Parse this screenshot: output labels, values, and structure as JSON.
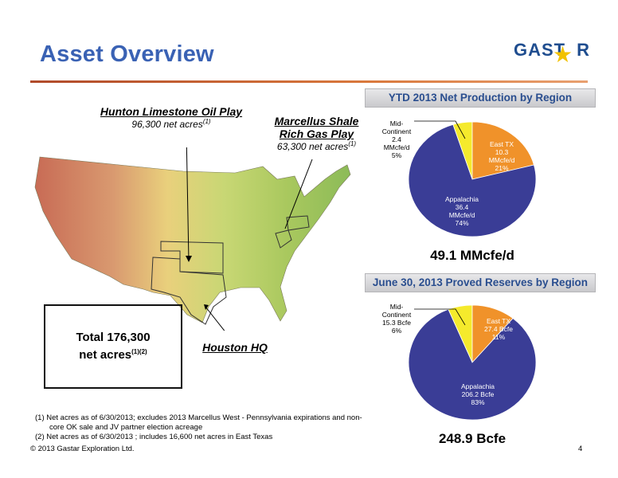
{
  "header": {
    "title": "Asset Overview",
    "logo_text": "GAST",
    "logo_text_end": "R"
  },
  "map": {
    "hunton": {
      "name": "Hunton Limestone Oil Play",
      "acres": "96,300 net acres",
      "note": "(1)"
    },
    "marcellus": {
      "name_line1": "Marcellus Shale",
      "name_line2": "Rich Gas Play",
      "acres": "63,300 net acres",
      "note": "(1)"
    },
    "houston": "Houston HQ",
    "total_line1": "Total 176,300",
    "total_line2": "net acres",
    "total_note": "(1)(2)"
  },
  "production": {
    "header": "YTD 2013 Net Production by Region",
    "total": "49.1 MMcfe/d",
    "labels": {
      "mid": [
        "Mid-",
        "Continent",
        "2.4",
        "MMcfe/d",
        "5%"
      ],
      "east": [
        "East TX",
        "10.3",
        "MMcfe/d",
        "21%"
      ],
      "app": [
        "Appalachia",
        "36.4",
        "MMcfe/d",
        "74%"
      ]
    }
  },
  "reserves": {
    "header": "June 30, 2013 Proved Reserves by Region",
    "total": "248.9 Bcfe",
    "labels": {
      "mid": [
        "Mid-",
        "Continent",
        "15.3 Bcfe",
        "6%"
      ],
      "east": [
        "East TX",
        "27.4 Bcfe",
        "11%"
      ],
      "app": [
        "Appalachia",
        "206.2 Bcfe",
        "83%"
      ]
    }
  },
  "chart_data": [
    {
      "type": "pie",
      "title": "YTD 2013 Net Production by Region",
      "categories": [
        "Appalachia",
        "Mid-Continent",
        "East TX"
      ],
      "values": [
        36.4,
        2.4,
        10.3
      ],
      "percent": [
        74,
        5,
        21
      ],
      "unit": "MMcfe/d",
      "colors": [
        "#3a3d96",
        "#f5ea2c",
        "#f0922a"
      ]
    },
    {
      "type": "pie",
      "title": "June 30, 2013 Proved Reserves by Region",
      "categories": [
        "Appalachia",
        "Mid-Continent",
        "East TX"
      ],
      "values": [
        206.2,
        15.3,
        27.4
      ],
      "percent": [
        83,
        6,
        11
      ],
      "unit": "Bcfe",
      "colors": [
        "#3a3d96",
        "#f5ea2c",
        "#f0922a"
      ]
    }
  ],
  "footnotes": {
    "n1a": "(1)  Net acres as of 6/30/2013; excludes 2013 Marcellus West - Pennsylvania expirations and non-",
    "n1b": "core OK sale and JV partner election acreage",
    "n2": "(2)  Net acres as of 6/30/2013 ; includes 16,600 net acres in East Texas",
    "copyright": "© 2013 Gastar Exploration Ltd.",
    "page": "4"
  }
}
